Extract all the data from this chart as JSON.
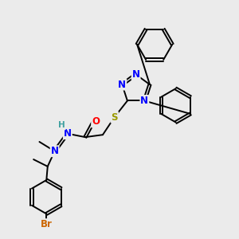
{
  "bg_color": "#ebebeb",
  "bond_color": "#000000",
  "N_color": "#0000ff",
  "S_color": "#999900",
  "O_color": "#ff0000",
  "Br_color": "#cc6600",
  "H_color": "#40a0a0",
  "figsize": [
    3.0,
    3.0
  ],
  "dpi": 100,
  "xlim": [
    0,
    10
  ],
  "ylim": [
    0,
    10
  ]
}
